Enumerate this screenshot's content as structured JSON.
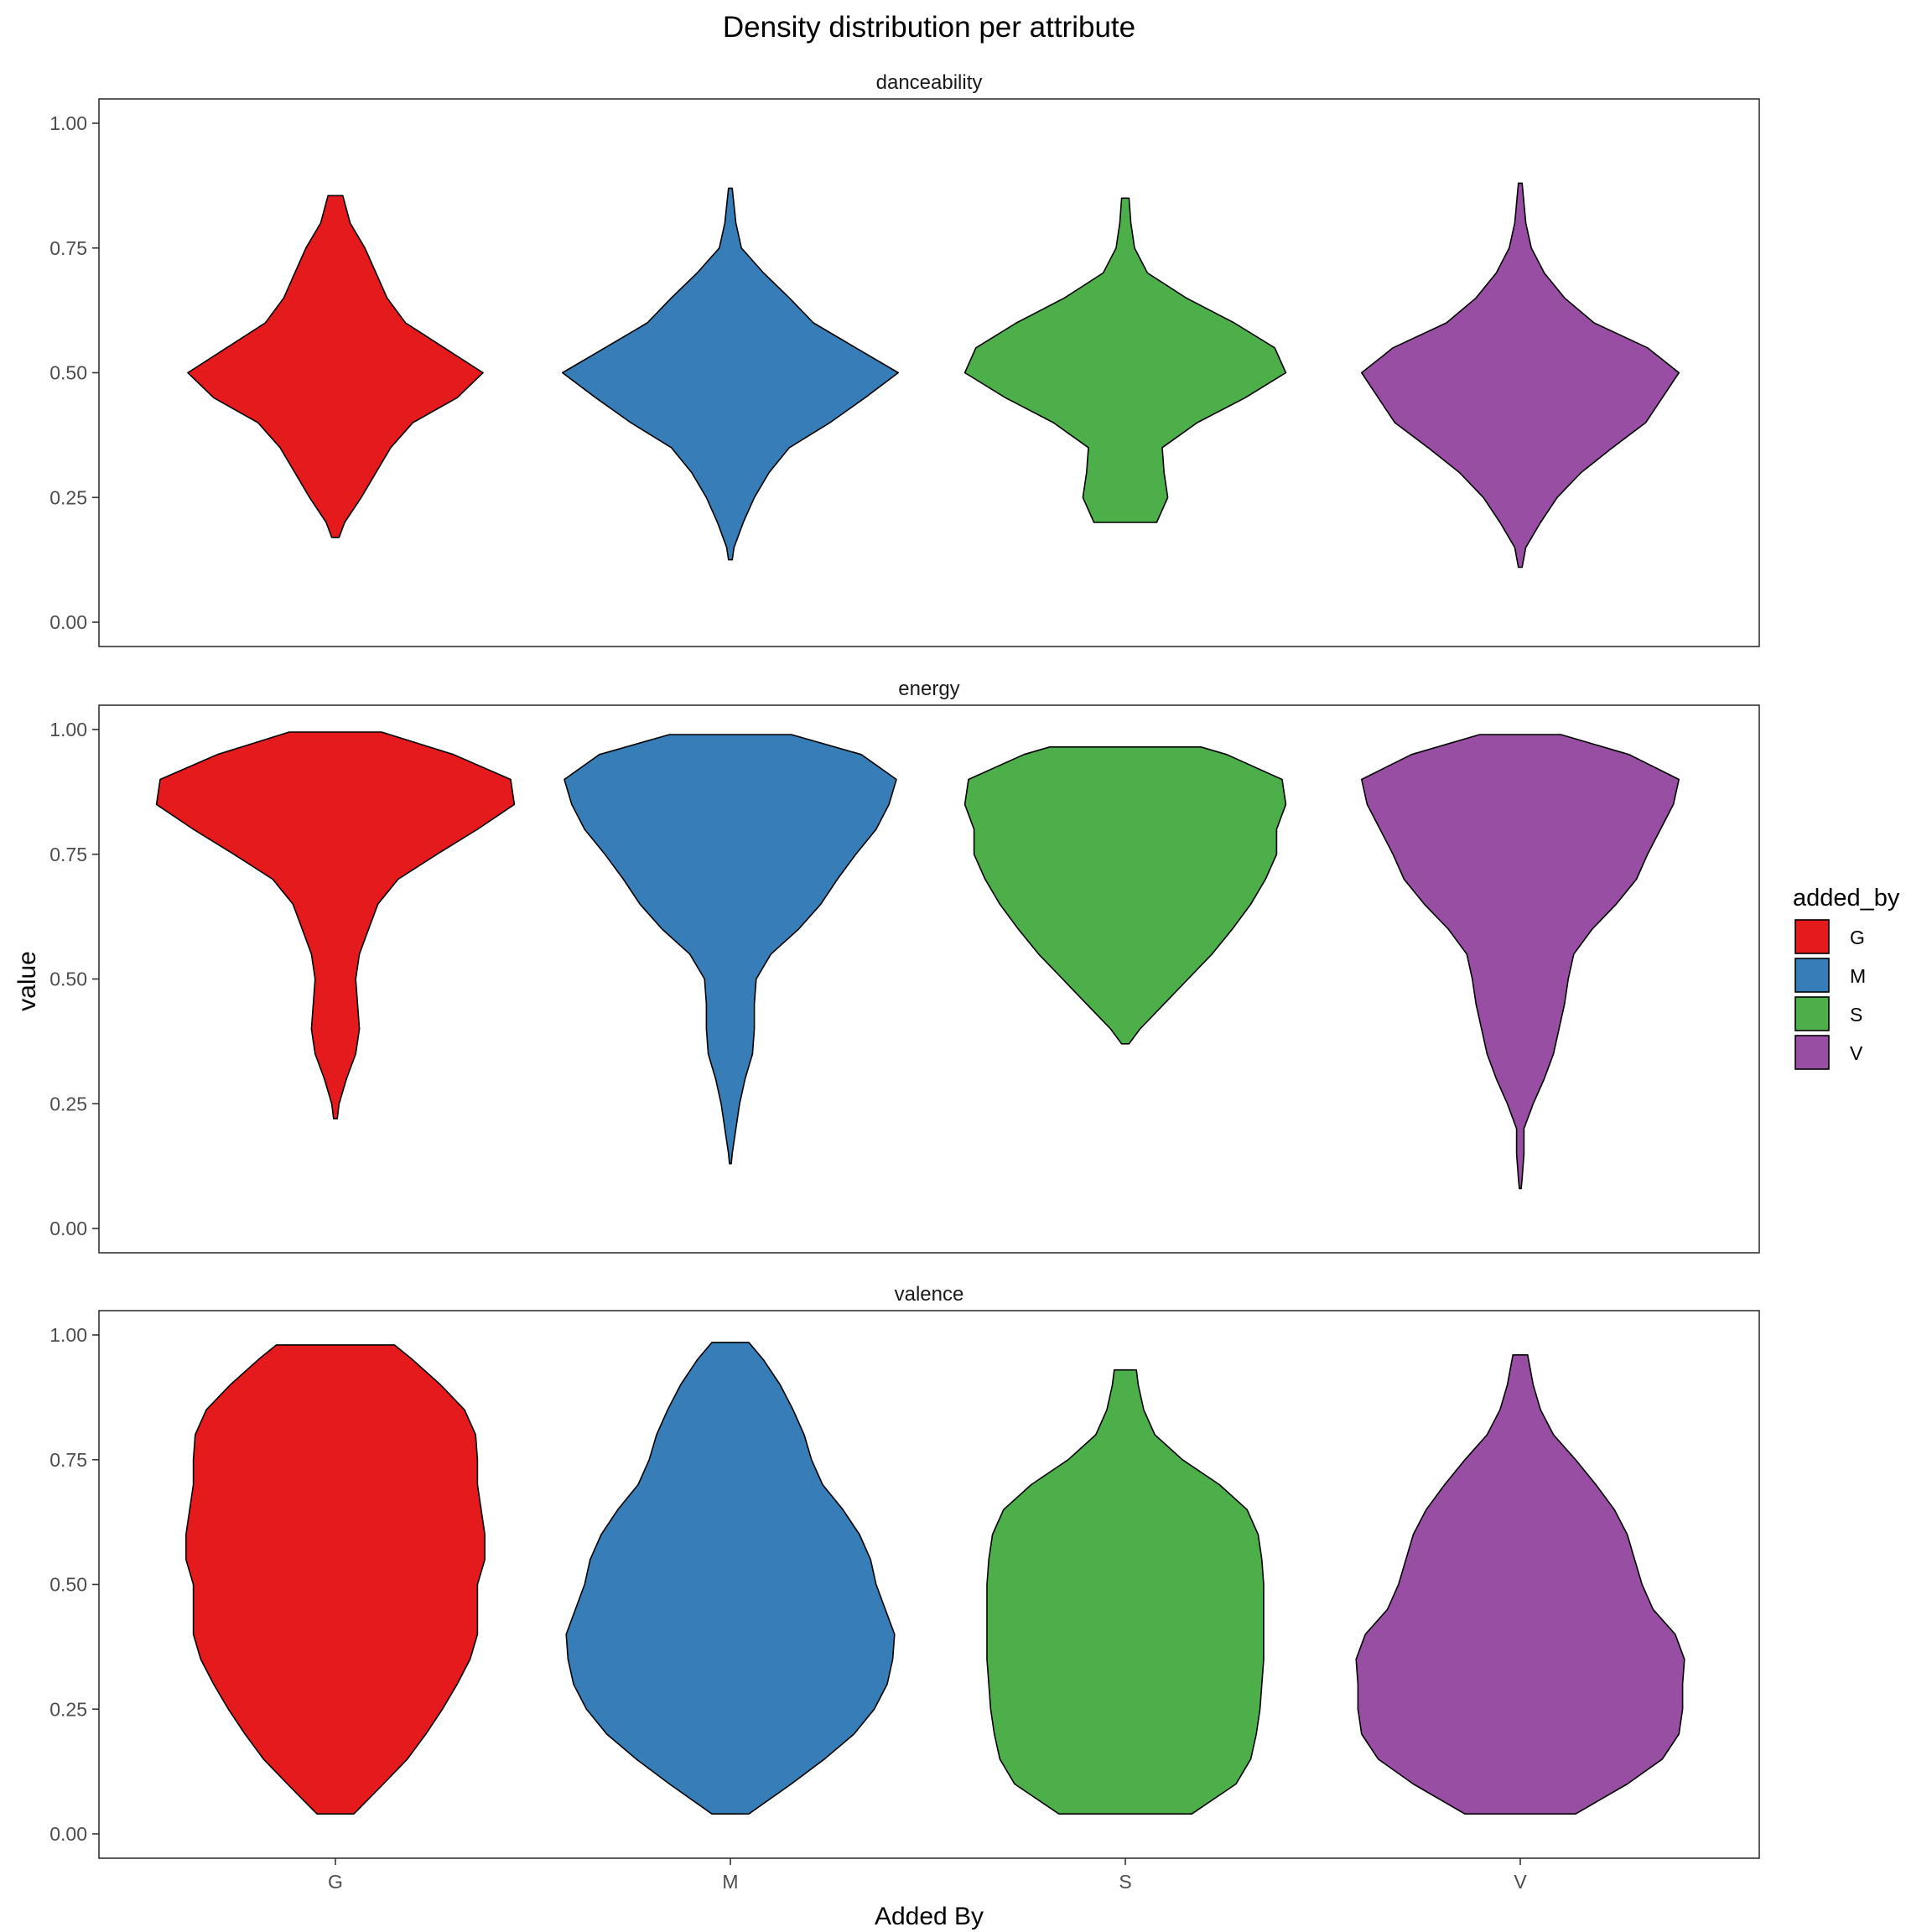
{
  "chart_data": {
    "type": "violin",
    "title": "Density distribution per attribute",
    "xlabel": "Added By",
    "ylabel": "value",
    "categories": [
      "G",
      "M",
      "S",
      "V"
    ],
    "colors": {
      "G": "#E41A1C",
      "M": "#377EB8",
      "S": "#4DAF4A",
      "V": "#984EA3"
    },
    "ylim": [
      0,
      1
    ],
    "yticks": [
      "0.00",
      "0.25",
      "0.50",
      "0.75",
      "1.00"
    ],
    "legend": {
      "title": "added_by",
      "position": "right",
      "labels": [
        "G",
        "M",
        "S",
        "V"
      ]
    },
    "grid": false,
    "panels": [
      {
        "name": "danceability",
        "violins": {
          "G": [
            [
              0.17,
              0.02
            ],
            [
              0.2,
              0.05
            ],
            [
              0.25,
              0.14
            ],
            [
              0.3,
              0.22
            ],
            [
              0.35,
              0.3
            ],
            [
              0.4,
              0.42
            ],
            [
              0.45,
              0.66
            ],
            [
              0.5,
              0.8
            ],
            [
              0.55,
              0.59
            ],
            [
              0.6,
              0.38
            ],
            [
              0.65,
              0.28
            ],
            [
              0.7,
              0.22
            ],
            [
              0.75,
              0.16
            ],
            [
              0.8,
              0.08
            ],
            [
              0.855,
              0.04
            ]
          ],
          "M": [
            [
              0.125,
              0.01
            ],
            [
              0.15,
              0.02
            ],
            [
              0.2,
              0.07
            ],
            [
              0.25,
              0.13
            ],
            [
              0.3,
              0.21
            ],
            [
              0.35,
              0.32
            ],
            [
              0.4,
              0.54
            ],
            [
              0.45,
              0.73
            ],
            [
              0.5,
              0.91
            ],
            [
              0.55,
              0.68
            ],
            [
              0.6,
              0.45
            ],
            [
              0.65,
              0.32
            ],
            [
              0.7,
              0.18
            ],
            [
              0.75,
              0.06
            ],
            [
              0.8,
              0.03
            ],
            [
              0.87,
              0.01
            ]
          ],
          "S": [
            [
              0.2,
              0.17
            ],
            [
              0.25,
              0.23
            ],
            [
              0.3,
              0.21
            ],
            [
              0.35,
              0.2
            ],
            [
              0.4,
              0.39
            ],
            [
              0.45,
              0.65
            ],
            [
              0.5,
              0.87
            ],
            [
              0.55,
              0.81
            ],
            [
              0.6,
              0.59
            ],
            [
              0.65,
              0.33
            ],
            [
              0.7,
              0.12
            ],
            [
              0.75,
              0.05
            ],
            [
              0.8,
              0.03
            ],
            [
              0.85,
              0.02
            ]
          ],
          "V": [
            [
              0.11,
              0.01
            ],
            [
              0.15,
              0.03
            ],
            [
              0.2,
              0.11
            ],
            [
              0.25,
              0.2
            ],
            [
              0.3,
              0.33
            ],
            [
              0.35,
              0.5
            ],
            [
              0.4,
              0.68
            ],
            [
              0.45,
              0.77
            ],
            [
              0.5,
              0.86
            ],
            [
              0.55,
              0.69
            ],
            [
              0.6,
              0.4
            ],
            [
              0.65,
              0.24
            ],
            [
              0.7,
              0.13
            ],
            [
              0.75,
              0.06
            ],
            [
              0.8,
              0.03
            ],
            [
              0.88,
              0.01
            ]
          ]
        }
      },
      {
        "name": "energy",
        "violins": {
          "G": [
            [
              0.22,
              0.01
            ],
            [
              0.25,
              0.02
            ],
            [
              0.3,
              0.06
            ],
            [
              0.35,
              0.11
            ],
            [
              0.4,
              0.13
            ],
            [
              0.45,
              0.12
            ],
            [
              0.5,
              0.11
            ],
            [
              0.55,
              0.13
            ],
            [
              0.6,
              0.18
            ],
            [
              0.65,
              0.23
            ],
            [
              0.7,
              0.34
            ],
            [
              0.75,
              0.55
            ],
            [
              0.8,
              0.77
            ],
            [
              0.85,
              0.97
            ],
            [
              0.9,
              0.95
            ],
            [
              0.95,
              0.64
            ],
            [
              0.995,
              0.25
            ]
          ],
          "M": [
            [
              0.13,
              0.005
            ],
            [
              0.15,
              0.01
            ],
            [
              0.2,
              0.03
            ],
            [
              0.25,
              0.05
            ],
            [
              0.3,
              0.08
            ],
            [
              0.35,
              0.12
            ],
            [
              0.4,
              0.13
            ],
            [
              0.45,
              0.13
            ],
            [
              0.5,
              0.14
            ],
            [
              0.55,
              0.22
            ],
            [
              0.6,
              0.37
            ],
            [
              0.65,
              0.49
            ],
            [
              0.7,
              0.58
            ],
            [
              0.75,
              0.68
            ],
            [
              0.8,
              0.79
            ],
            [
              0.85,
              0.86
            ],
            [
              0.9,
              0.9
            ],
            [
              0.95,
              0.71
            ],
            [
              0.99,
              0.33
            ]
          ],
          "S": [
            [
              0.37,
              0.02
            ],
            [
              0.4,
              0.08
            ],
            [
              0.45,
              0.21
            ],
            [
              0.5,
              0.34
            ],
            [
              0.55,
              0.47
            ],
            [
              0.6,
              0.58
            ],
            [
              0.65,
              0.68
            ],
            [
              0.7,
              0.76
            ],
            [
              0.75,
              0.82
            ],
            [
              0.8,
              0.82
            ],
            [
              0.85,
              0.87
            ],
            [
              0.9,
              0.85
            ],
            [
              0.95,
              0.55
            ],
            [
              0.965,
              0.41
            ]
          ],
          "V": [
            [
              0.08,
              0.005
            ],
            [
              0.1,
              0.01
            ],
            [
              0.15,
              0.02
            ],
            [
              0.2,
              0.02
            ],
            [
              0.25,
              0.07
            ],
            [
              0.3,
              0.13
            ],
            [
              0.35,
              0.18
            ],
            [
              0.4,
              0.21
            ],
            [
              0.45,
              0.24
            ],
            [
              0.5,
              0.26
            ],
            [
              0.55,
              0.29
            ],
            [
              0.6,
              0.39
            ],
            [
              0.65,
              0.52
            ],
            [
              0.7,
              0.63
            ],
            [
              0.75,
              0.69
            ],
            [
              0.8,
              0.76
            ],
            [
              0.85,
              0.83
            ],
            [
              0.9,
              0.86
            ],
            [
              0.95,
              0.59
            ],
            [
              0.99,
              0.22
            ]
          ]
        }
      },
      {
        "name": "valence",
        "violins": {
          "G": [
            [
              0.04,
              0.1
            ],
            [
              0.1,
              0.26
            ],
            [
              0.15,
              0.39
            ],
            [
              0.2,
              0.49
            ],
            [
              0.25,
              0.58
            ],
            [
              0.3,
              0.66
            ],
            [
              0.35,
              0.73
            ],
            [
              0.4,
              0.77
            ],
            [
              0.45,
              0.77
            ],
            [
              0.5,
              0.77
            ],
            [
              0.55,
              0.81
            ],
            [
              0.6,
              0.81
            ],
            [
              0.65,
              0.79
            ],
            [
              0.7,
              0.77
            ],
            [
              0.75,
              0.77
            ],
            [
              0.8,
              0.76
            ],
            [
              0.85,
              0.7
            ],
            [
              0.9,
              0.57
            ],
            [
              0.95,
              0.42
            ],
            [
              0.98,
              0.32
            ]
          ],
          "M": [
            [
              0.04,
              0.1
            ],
            [
              0.1,
              0.33
            ],
            [
              0.15,
              0.51
            ],
            [
              0.2,
              0.67
            ],
            [
              0.25,
              0.78
            ],
            [
              0.3,
              0.85
            ],
            [
              0.35,
              0.88
            ],
            [
              0.4,
              0.89
            ],
            [
              0.45,
              0.84
            ],
            [
              0.5,
              0.79
            ],
            [
              0.55,
              0.76
            ],
            [
              0.6,
              0.7
            ],
            [
              0.65,
              0.61
            ],
            [
              0.7,
              0.5
            ],
            [
              0.75,
              0.44
            ],
            [
              0.8,
              0.4
            ],
            [
              0.85,
              0.34
            ],
            [
              0.9,
              0.27
            ],
            [
              0.95,
              0.18
            ],
            [
              0.985,
              0.1
            ]
          ],
          "S": [
            [
              0.04,
              0.36
            ],
            [
              0.1,
              0.6
            ],
            [
              0.15,
              0.68
            ],
            [
              0.2,
              0.71
            ],
            [
              0.25,
              0.73
            ],
            [
              0.3,
              0.74
            ],
            [
              0.35,
              0.75
            ],
            [
              0.4,
              0.75
            ],
            [
              0.45,
              0.75
            ],
            [
              0.5,
              0.75
            ],
            [
              0.55,
              0.74
            ],
            [
              0.6,
              0.72
            ],
            [
              0.65,
              0.66
            ],
            [
              0.7,
              0.51
            ],
            [
              0.75,
              0.31
            ],
            [
              0.8,
              0.16
            ],
            [
              0.85,
              0.1
            ],
            [
              0.9,
              0.07
            ],
            [
              0.93,
              0.06
            ]
          ],
          "V": [
            [
              0.04,
              0.3
            ],
            [
              0.1,
              0.58
            ],
            [
              0.15,
              0.77
            ],
            [
              0.2,
              0.86
            ],
            [
              0.25,
              0.88
            ],
            [
              0.3,
              0.88
            ],
            [
              0.35,
              0.89
            ],
            [
              0.4,
              0.84
            ],
            [
              0.45,
              0.72
            ],
            [
              0.5,
              0.66
            ],
            [
              0.55,
              0.62
            ],
            [
              0.6,
              0.58
            ],
            [
              0.65,
              0.51
            ],
            [
              0.7,
              0.41
            ],
            [
              0.75,
              0.3
            ],
            [
              0.8,
              0.18
            ],
            [
              0.85,
              0.11
            ],
            [
              0.9,
              0.07
            ],
            [
              0.96,
              0.04
            ]
          ]
        }
      }
    ]
  }
}
